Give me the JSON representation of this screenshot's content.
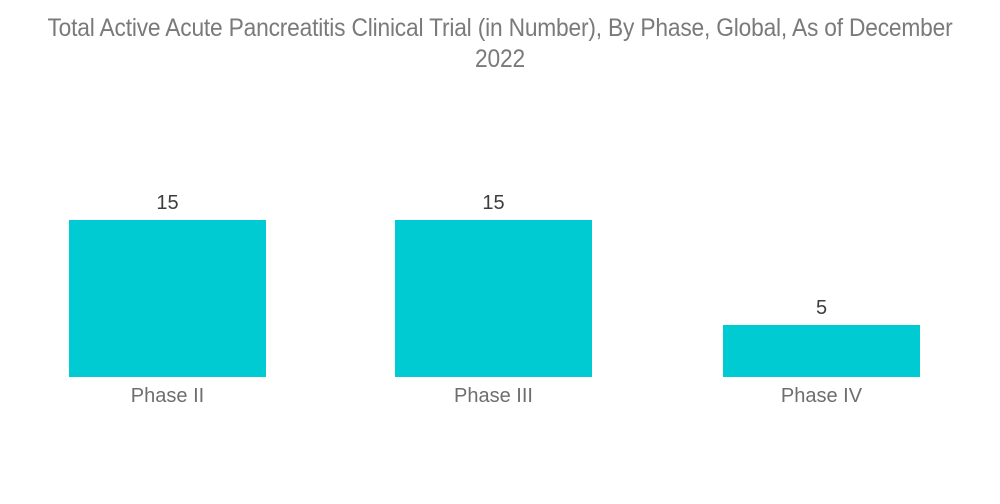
{
  "colors": {
    "bar": "#00cbd3",
    "title_text": "#7a7a7a",
    "value_text": "#3d3d3d",
    "label_text": "#6e6e6e",
    "background": "#ffffff"
  },
  "chart_data": {
    "type": "bar",
    "title": "Total Active Acute Pancreatitis Clinical Trial (in Number), By Phase, Global, As of December 2022",
    "categories": [
      "Phase II",
      "Phase III",
      "Phase IV"
    ],
    "values": [
      15,
      15,
      5
    ],
    "data_labels": [
      "15",
      "15",
      "5"
    ],
    "xlabel": "",
    "ylabel": "",
    "ylim": [
      0,
      15
    ],
    "grid": false,
    "legend": false,
    "axes_shown": false,
    "bar_color": "#00cbd3",
    "orientation": "vertical"
  }
}
